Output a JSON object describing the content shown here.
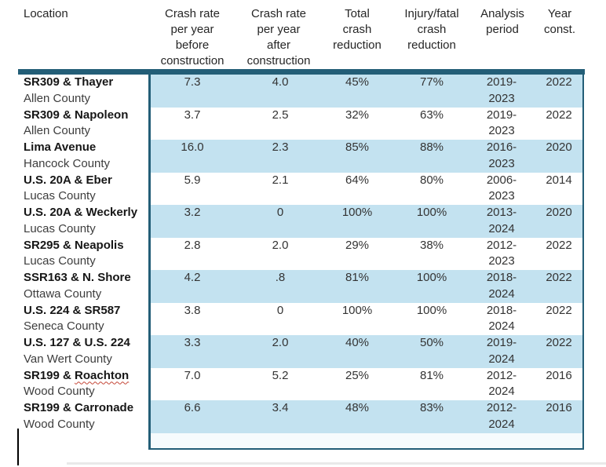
{
  "colors": {
    "header_bar": "#235e77",
    "box_border": "#235e77",
    "row_shade": "#c3e2f0",
    "empty_strip": "#f6fbfd",
    "spellcheck": "#c44536",
    "caret": "#000000"
  },
  "table": {
    "headers": [
      {
        "id": "location",
        "text": "Location"
      },
      {
        "id": "crash_rate_before",
        "text": "Crash rate\nper year\nbefore\nconstruction"
      },
      {
        "id": "crash_rate_after",
        "text": "Crash rate\nper year\nafter\nconstruction"
      },
      {
        "id": "total_crash_reduction",
        "text": "Total\ncrash\nreduction"
      },
      {
        "id": "injury_fatal_reduction",
        "text": "Injury/fatal\ncrash\nreduction"
      },
      {
        "id": "analysis_period",
        "text": "Analysis\nperiod"
      },
      {
        "id": "year_const",
        "text": "Year\nconst."
      }
    ],
    "rows": [
      {
        "location": "SR309 & Thayer",
        "location_flagged": "",
        "county": "Allen County",
        "before": "7.3",
        "after": "4.0",
        "total": "45%",
        "injury_fatal": "77%",
        "period": "2019-\n2023",
        "year": "2022",
        "shaded": true
      },
      {
        "location": "SR309 & Napoleon",
        "location_flagged": "",
        "county": "Allen County",
        "before": "3.7",
        "after": "2.5",
        "total": "32%",
        "injury_fatal": "63%",
        "period": "2019-\n2023",
        "year": "2022",
        "shaded": false
      },
      {
        "location": "Lima Avenue",
        "location_flagged": "",
        "county": "Hancock County",
        "before": "16.0",
        "after": "2.3",
        "total": "85%",
        "injury_fatal": "88%",
        "period": "2016-\n2023",
        "year": "2020",
        "shaded": true
      },
      {
        "location": "U.S. 20A & Eber",
        "location_flagged": "",
        "county": "Lucas County",
        "before": "5.9",
        "after": "2.1",
        "total": "64%",
        "injury_fatal": "80%",
        "period": "2006-\n2023",
        "year": "2014",
        "shaded": false
      },
      {
        "location": "U.S. 20A & Weckerly",
        "location_flagged": "",
        "county": "Lucas County",
        "before": "3.2",
        "after": "0",
        "total": "100%",
        "injury_fatal": "100%",
        "period": "2013-\n2024",
        "year": "2020",
        "shaded": true
      },
      {
        "location": "SR295 & Neapolis",
        "location_flagged": "",
        "county": "Lucas County",
        "before": "2.8",
        "after": "2.0",
        "total": "29%",
        "injury_fatal": "38%",
        "period": "2012-\n2023",
        "year": "2022",
        "shaded": false
      },
      {
        "location": "SSR163 & N. Shore",
        "location_flagged": "",
        "county": "Ottawa County",
        "before": "4.2",
        "after": ".8",
        "total": "81%",
        "injury_fatal": "100%",
        "period": "2018-\n2024",
        "year": "2022",
        "shaded": true
      },
      {
        "location": "U.S. 224 & SR587",
        "location_flagged": "",
        "county": "Seneca County",
        "before": "3.8",
        "after": "0",
        "total": "100%",
        "injury_fatal": "100%",
        "period": "2018-\n2024",
        "year": "2022",
        "shaded": false
      },
      {
        "location": "U.S. 127 & U.S. 224",
        "location_flagged": "",
        "county": "Van Wert County",
        "before": "3.3",
        "after": "2.0",
        "total": "40%",
        "injury_fatal": "50%",
        "period": "2019-\n2024",
        "year": "2022",
        "shaded": true
      },
      {
        "location": "SR199 & ",
        "location_flagged": "Roachton",
        "county": "Wood County",
        "before": "7.0",
        "after": "5.2",
        "total": "25%",
        "injury_fatal": "81%",
        "period": "2012-\n2024",
        "year": "2016",
        "shaded": false
      },
      {
        "location": "SR199 & Carronade",
        "location_flagged": "",
        "county": "Wood County",
        "before": "6.6",
        "after": "3.4",
        "total": "48%",
        "injury_fatal": "83%",
        "period": "2012-\n2024",
        "year": "2016",
        "shaded": true
      }
    ]
  },
  "caret": {
    "visible": true
  }
}
